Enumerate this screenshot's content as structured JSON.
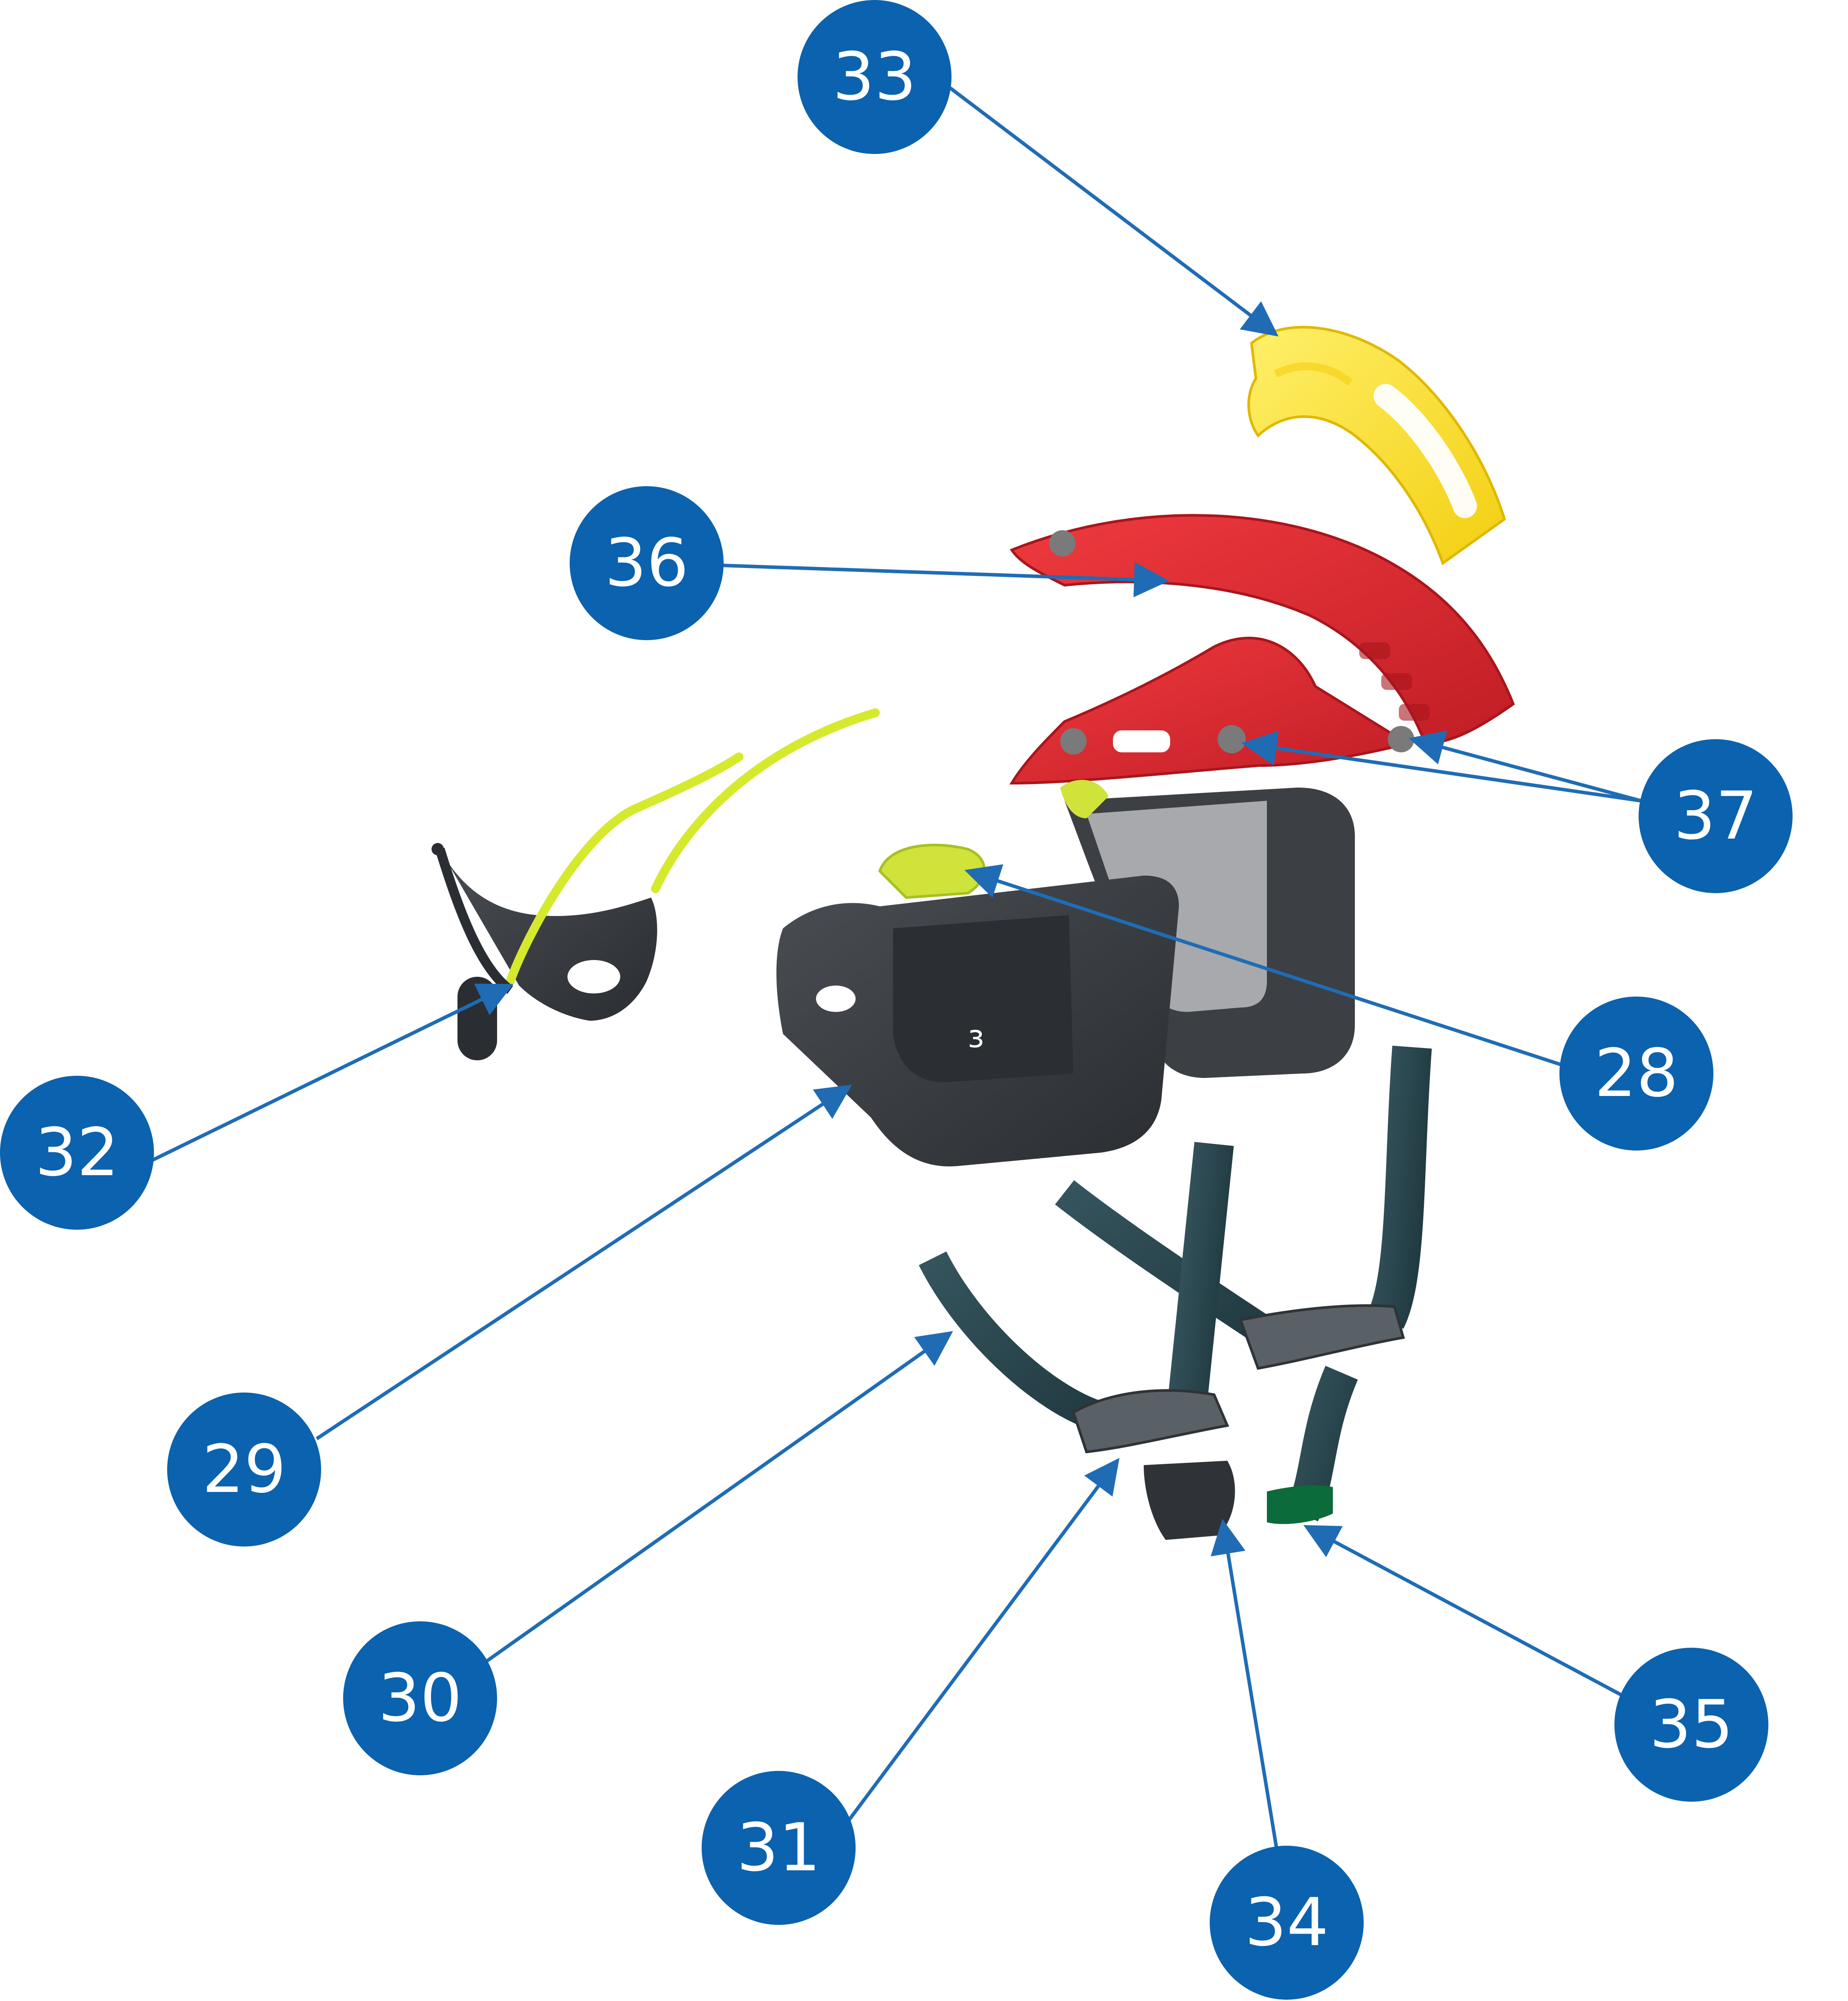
{
  "colors": {
    "callout_fill": "#0b62ae",
    "leader_line": "#1f6cb5",
    "frame_red": "#d7262e",
    "pad_yellow": "#fbe034",
    "accent_lime": "#d5ea2d",
    "liner_dark": "#3a3d42",
    "liner_gray": "#a7a9ac",
    "strap_teal": "#2c4a52",
    "buckle_green": "#0c6b3a"
  },
  "callouts": [
    {
      "id": "33",
      "label": "33"
    },
    {
      "id": "36",
      "label": "36"
    },
    {
      "id": "37",
      "label": "37"
    },
    {
      "id": "28",
      "label": "28"
    },
    {
      "id": "32",
      "label": "32"
    },
    {
      "id": "29",
      "label": "29"
    },
    {
      "id": "30",
      "label": "30"
    },
    {
      "id": "31",
      "label": "31"
    },
    {
      "id": "34",
      "label": "34"
    },
    {
      "id": "35",
      "label": "35"
    }
  ]
}
